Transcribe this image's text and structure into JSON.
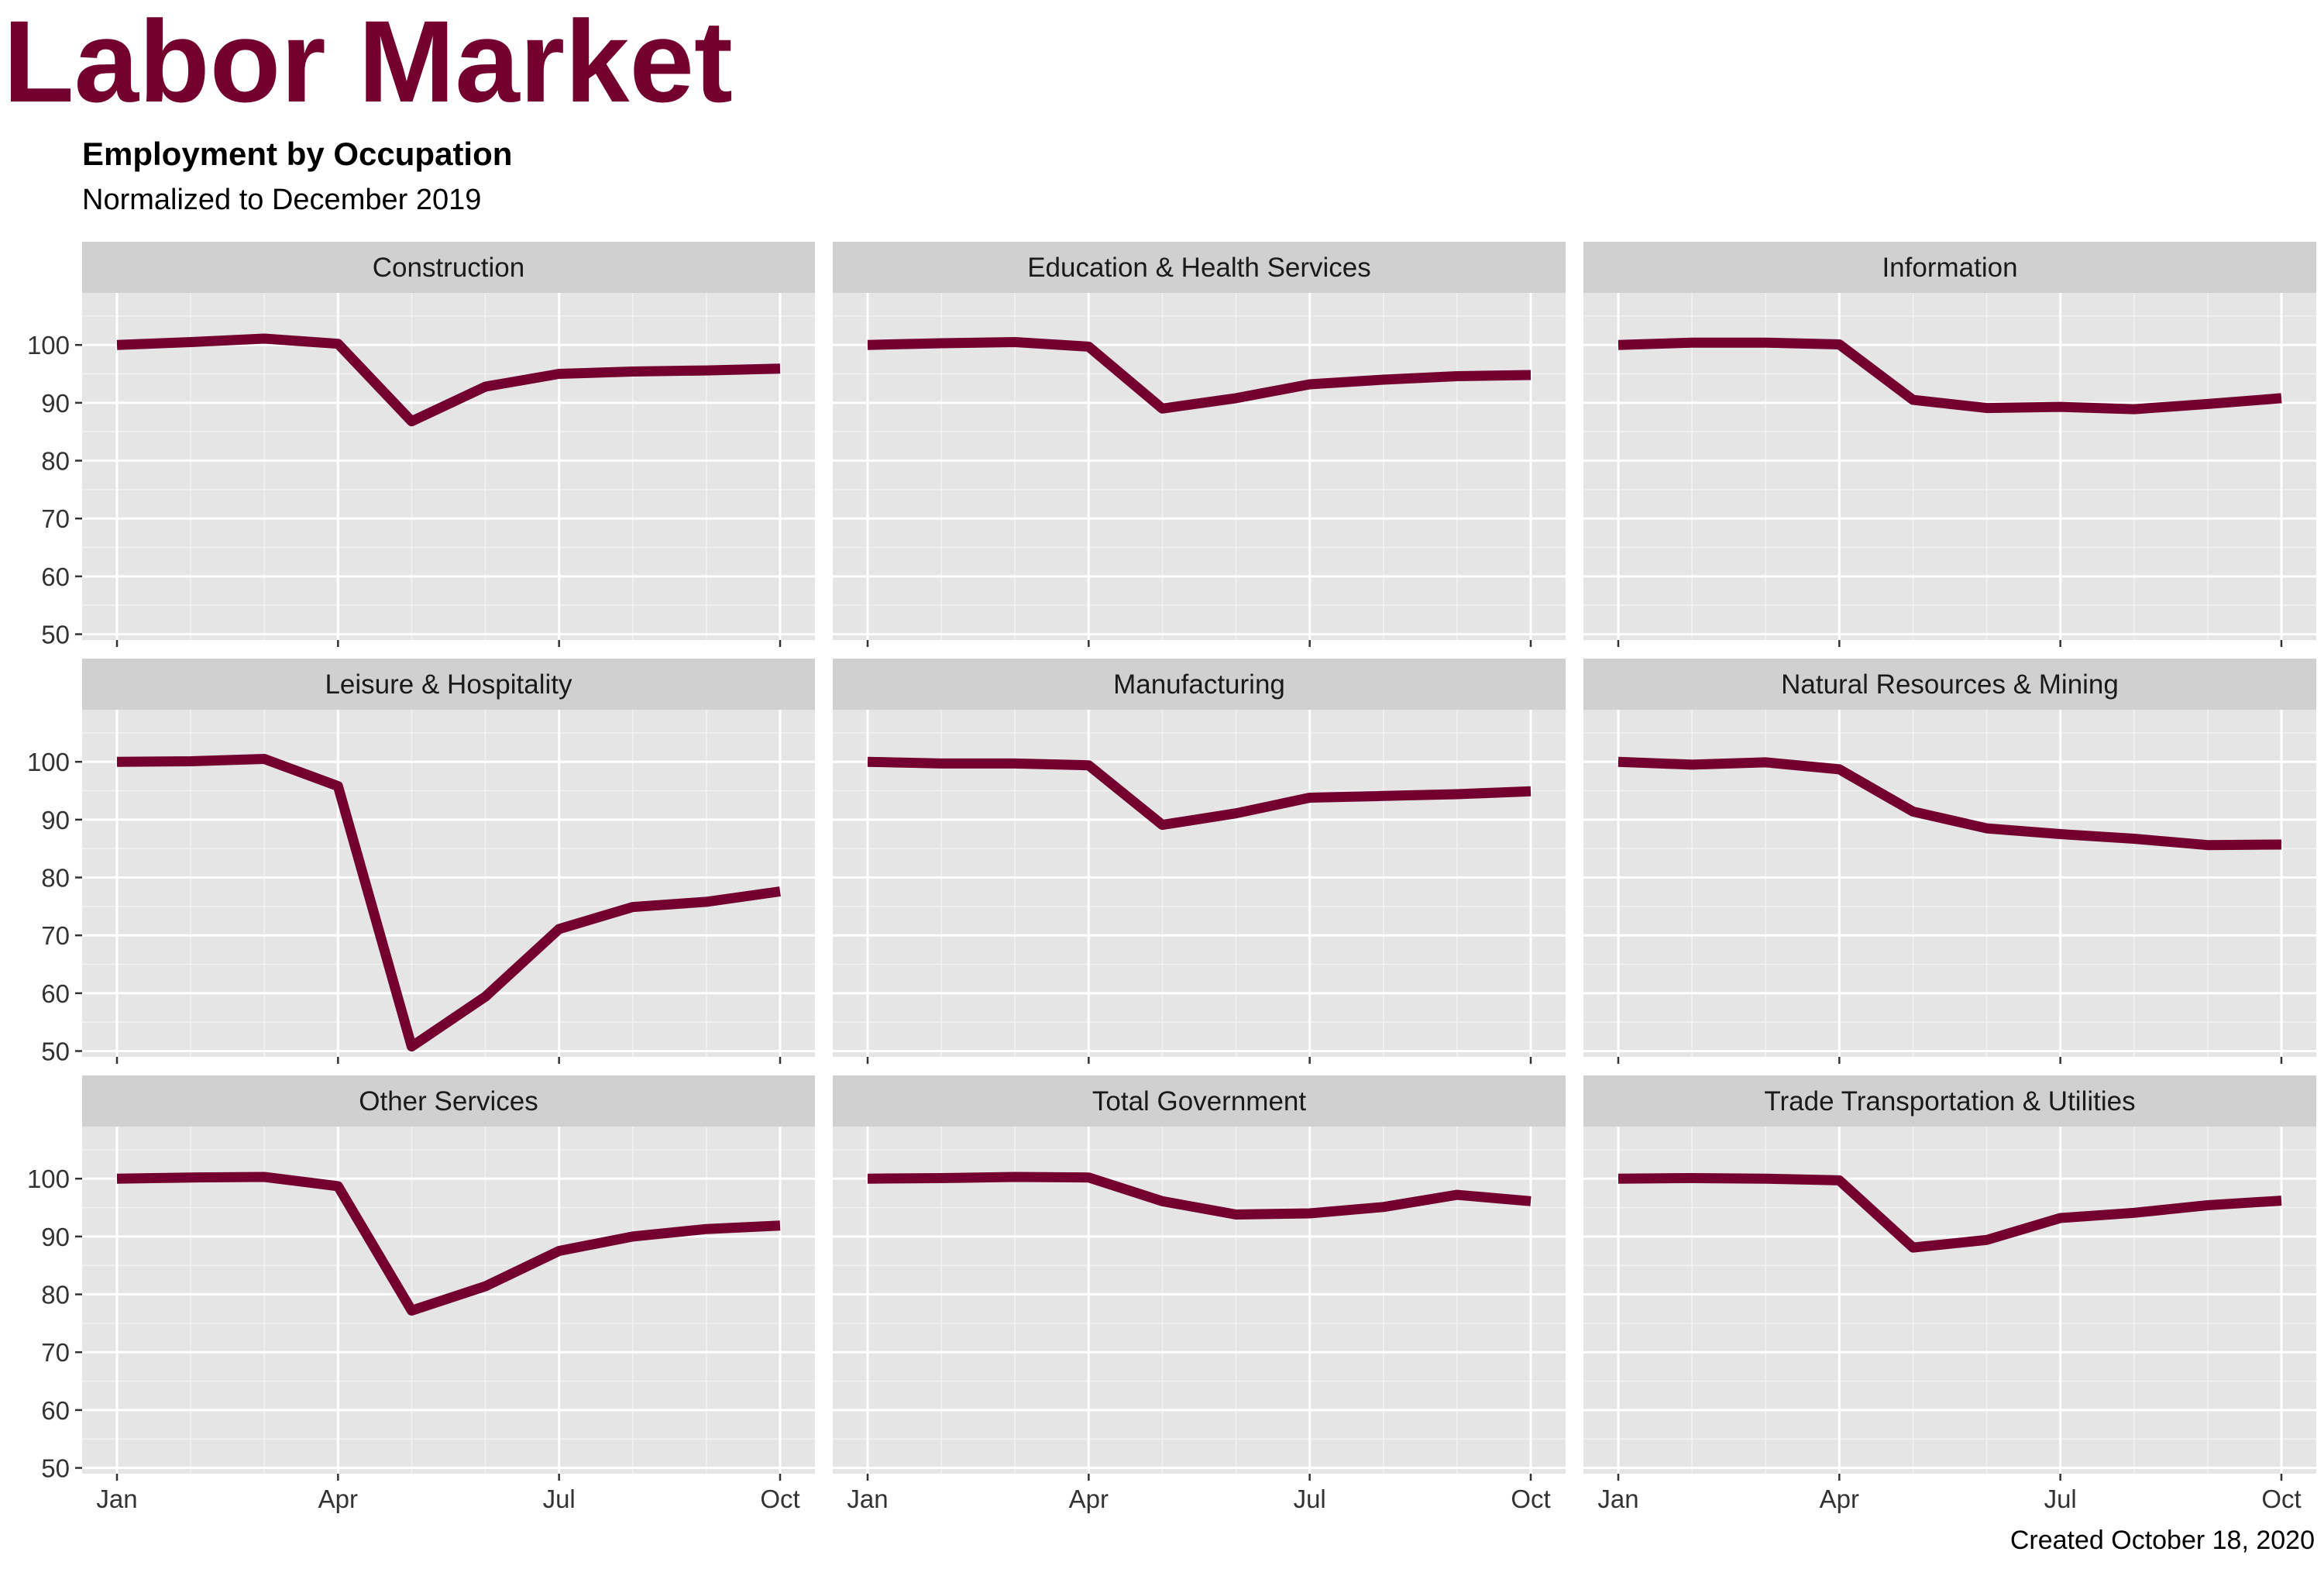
{
  "title": "Labor Market",
  "subtitle": "Employment by Occupation",
  "note": "Normalized to December 2019",
  "caption": "Created October 18, 2020",
  "chart_data": {
    "type": "line",
    "layout": "facet-grid 3x3",
    "x": [
      "2020-01",
      "2020-02",
      "2020-03",
      "2020-04",
      "2020-05",
      "2020-06",
      "2020-07",
      "2020-08",
      "2020-09",
      "2020-10"
    ],
    "x_ticks": [
      {
        "label": "Jan",
        "value": "2020-01"
      },
      {
        "label": "Apr",
        "value": "2020-04"
      },
      {
        "label": "Jul",
        "value": "2020-07"
      },
      {
        "label": "Oct",
        "value": "2020-10"
      }
    ],
    "y_ticks": [
      50,
      60,
      70,
      80,
      90,
      100
    ],
    "ylim": [
      49,
      109
    ],
    "grid": true,
    "line_color": "#73002e",
    "panel_background": "#e5e5e5",
    "strip_background": "#d0d0d0",
    "series": [
      {
        "name": "Construction",
        "values": [
          100,
          100.5,
          101.1,
          100.2,
          86.8,
          92.8,
          95.0,
          95.4,
          95.6,
          95.9
        ]
      },
      {
        "name": "Education & Health Services",
        "values": [
          100,
          100.3,
          100.5,
          99.7,
          89.0,
          90.8,
          93.2,
          94.0,
          94.6,
          94.8
        ]
      },
      {
        "name": "Information",
        "values": [
          100,
          100.4,
          100.4,
          100.1,
          90.5,
          89.1,
          89.3,
          88.9,
          89.8,
          90.8
        ]
      },
      {
        "name": "Leisure & Hospitality",
        "values": [
          100,
          100.1,
          100.5,
          95.8,
          50.8,
          59.4,
          71.1,
          74.9,
          75.8,
          77.6
        ]
      },
      {
        "name": "Manufacturing",
        "values": [
          100,
          99.7,
          99.7,
          99.4,
          89.1,
          91.1,
          93.8,
          94.1,
          94.4,
          94.9
        ]
      },
      {
        "name": "Natural Resources & Mining",
        "values": [
          100,
          99.5,
          99.9,
          98.7,
          91.4,
          88.5,
          87.5,
          86.7,
          85.6,
          85.7
        ]
      },
      {
        "name": "Other Services",
        "values": [
          100,
          100.2,
          100.3,
          98.7,
          77.2,
          81.4,
          87.5,
          90.0,
          91.3,
          91.9
        ]
      },
      {
        "name": "Total Government",
        "values": [
          100,
          100.1,
          100.3,
          100.2,
          96.1,
          93.8,
          94.0,
          95.1,
          97.2,
          96.1
        ]
      },
      {
        "name": "Trade Transportation & Utilities",
        "values": [
          100,
          100.1,
          100.0,
          99.7,
          88.1,
          89.4,
          93.2,
          94.1,
          95.4,
          96.2
        ]
      }
    ]
  }
}
